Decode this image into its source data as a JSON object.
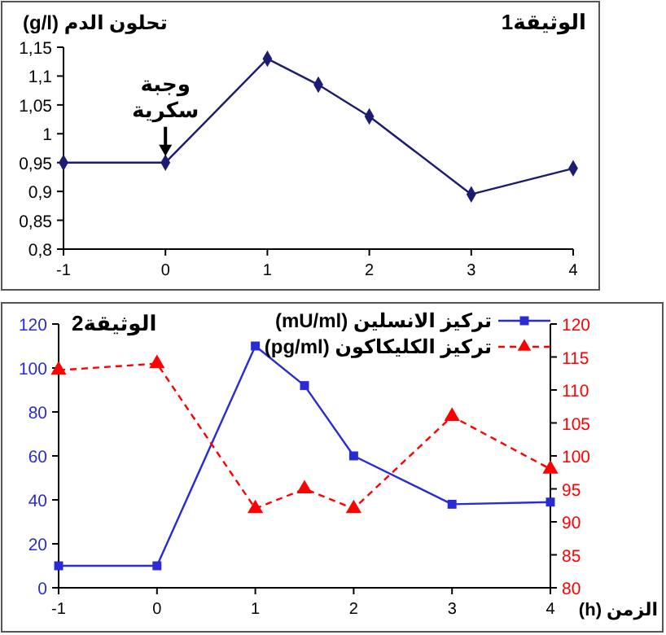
{
  "chart_data": [
    {
      "type": "line",
      "title": "الوثيقة1",
      "ylabel": "تحلون الدم (g/l)",
      "x": [
        -1,
        0,
        1,
        1.5,
        2,
        3,
        4
      ],
      "values": [
        0.95,
        0.95,
        1.13,
        1.085,
        1.03,
        0.895,
        0.94
      ],
      "color": "#1c1c70",
      "marker": "diamond",
      "xlim": [
        -1,
        4
      ],
      "xticks": [
        -1,
        0,
        1,
        2,
        3,
        4
      ],
      "ylim": [
        0.8,
        1.15
      ],
      "yticks": [
        {
          "value": 0.8,
          "label": "0,8"
        },
        {
          "value": 0.85,
          "label": "0,85"
        },
        {
          "value": 0.9,
          "label": "0,9"
        },
        {
          "value": 0.95,
          "label": "0,95"
        },
        1,
        {
          "value": 1.05,
          "label": "1,05"
        },
        {
          "value": 1.1,
          "label": "1,1"
        },
        {
          "value": 1.15,
          "label": "1,15"
        }
      ],
      "annotations": [
        {
          "text": "وجبة سكرية",
          "x": 0,
          "y": 0.95
        }
      ]
    },
    {
      "type": "line",
      "title": "الوثيقة2",
      "xlabel": "الزمن (h)",
      "x": [
        -1,
        0,
        1,
        1.5,
        2,
        3,
        4
      ],
      "legend": "top right",
      "xlim": [
        -1,
        4
      ],
      "xticks": [
        -1,
        0,
        1,
        2,
        3,
        4
      ],
      "ylim": [
        0,
        120
      ],
      "yticks": [
        0,
        20,
        40,
        60,
        80,
        100,
        120
      ],
      "y2lim": [
        80,
        120
      ],
      "y2ticks": [
        80,
        85,
        90,
        95,
        100,
        105,
        110,
        115,
        120
      ],
      "series": [
        {
          "name": "تركيز الانسلين (mU/ml)",
          "color": "#2b2bd6",
          "marker": "square",
          "line_style": "solid",
          "values": [
            10,
            10,
            110,
            92,
            60,
            38,
            39
          ]
        },
        {
          "name": "تركيز الكليكاكون (pg/ml)",
          "color": "#ff0000",
          "marker": "triangle",
          "line_style": "dashed",
          "axis": "y2",
          "values": [
            113,
            114,
            92,
            95,
            92,
            106,
            98
          ]
        }
      ]
    }
  ]
}
